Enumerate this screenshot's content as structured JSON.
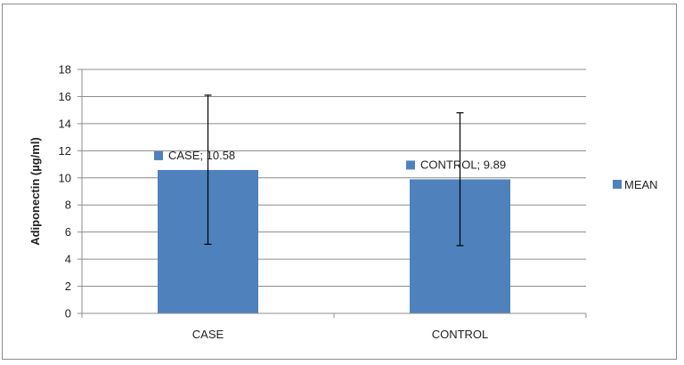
{
  "chart_data": {
    "type": "bar",
    "categories": [
      "CASE",
      "CONTROL"
    ],
    "series": [
      {
        "name": "MEAN",
        "values": [
          10.58,
          9.89
        ],
        "error_low": [
          5.1,
          5.0
        ],
        "error_high": [
          16.1,
          14.8
        ],
        "color": "#4f81bd"
      }
    ],
    "data_labels": [
      "CASE; 10.58",
      "CONTROL; 9.89"
    ],
    "ylabel": "Adiponectin (µg/ml)",
    "xlabel": "",
    "ylim": [
      0,
      18
    ],
    "yticks": [
      0,
      2,
      4,
      6,
      8,
      10,
      12,
      14,
      16,
      18
    ],
    "grid": true,
    "legend_position": "right"
  },
  "colors": {
    "bar": "#4f81bd",
    "grid": "#8c8c8c",
    "axis": "#8c8c8c",
    "errorbar": "#000000"
  }
}
